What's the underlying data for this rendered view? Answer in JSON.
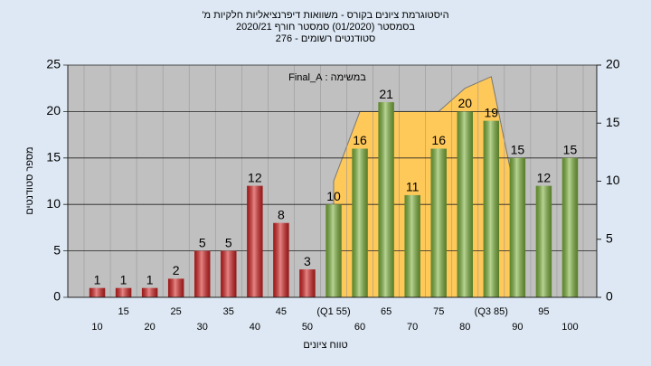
{
  "chart_data": {
    "type": "bar",
    "title": "היסטוגרמת ציונים בקורס - משוואות דיפרנציאליות חלקיות מ'",
    "subtitle": "בסמסטר (01/2020) סמסטר חורף 2020/21",
    "subtitle2": "סטודנטים רשומים - 276",
    "annotation": "במשימה : Final_A",
    "xlabel": "טווח ציונים",
    "ylabel": "מספר סטודנטים",
    "categories": [
      "10",
      "15",
      "20",
      "25",
      "30",
      "35",
      "40",
      "45",
      "50",
      "(Q1 55)",
      "60",
      "65",
      "70",
      "75",
      "80",
      "(Q3 85)",
      "90",
      "95",
      "100"
    ],
    "values": [
      1,
      1,
      1,
      2,
      5,
      5,
      12,
      8,
      3,
      10,
      16,
      21,
      11,
      16,
      20,
      19,
      15,
      12,
      15
    ],
    "colors": [
      "#d42020",
      "#d42020",
      "#d42020",
      "#d42020",
      "#d42020",
      "#d42020",
      "#d42020",
      "#d42020",
      "#d42020",
      "#7db33a",
      "#7db33a",
      "#7db33a",
      "#7db33a",
      "#7db33a",
      "#7db33a",
      "#7db33a",
      "#7db33a",
      "#7db33a",
      "#7db33a"
    ],
    "area": {
      "axis": "y2",
      "color": "#ffc95a",
      "values": [
        null,
        null,
        null,
        null,
        null,
        null,
        null,
        null,
        null,
        10,
        16,
        16,
        16,
        16,
        18,
        19,
        8,
        null,
        null
      ]
    },
    "ylim": [
      0,
      25
    ],
    "yticks": [
      0,
      5,
      10,
      15,
      20,
      25
    ],
    "y2lim": [
      0,
      20
    ],
    "y2ticks": [
      0,
      5,
      10,
      15,
      20
    ],
    "grid": true
  }
}
